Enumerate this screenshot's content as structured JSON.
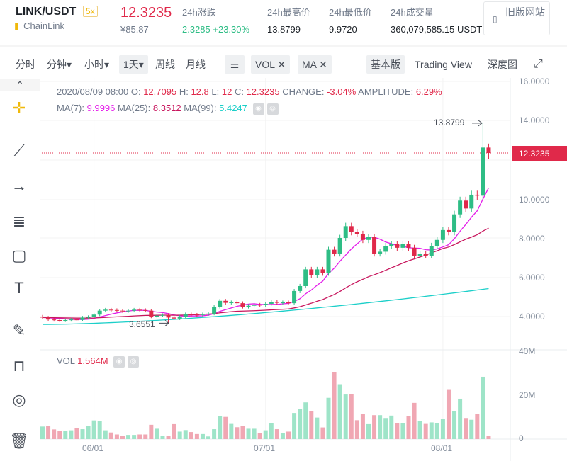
{
  "header": {
    "symbol": "LINK/USDT",
    "leverage": "5x",
    "coin_name": "ChainLink",
    "last_price": "12.3235",
    "last_price_cny": "¥85.87",
    "stats": [
      {
        "label": "24h涨跌",
        "value": "2.3285 +23.30%"
      },
      {
        "label": "24h最高价",
        "value": "13.8799"
      },
      {
        "label": "24h最低价",
        "value": "9.9720"
      },
      {
        "label": "24h成交量",
        "value": "360,079,585.15 USDT"
      }
    ],
    "old_site": "旧版网站"
  },
  "toolbar": {
    "intervals": [
      "分时",
      "分钟▾",
      "小时▾",
      "1天▾",
      "周线",
      "月线"
    ],
    "active_interval": "1天▾",
    "indicators": [
      "VOL ✕",
      "MA ✕"
    ],
    "views": [
      "基本版",
      "Trading View",
      "深度图"
    ],
    "active_view": "基本版"
  },
  "info": {
    "date": "2020/08/09 08:00",
    "o_label": "O:",
    "o": "12.7095",
    "h_label": "H:",
    "h": "12.8",
    "l_label": "L:",
    "l": "12",
    "c_label": "C:",
    "c": "12.3235",
    "change_label": "CHANGE:",
    "change": "-3.04%",
    "amp_label": "AMPLITUDE:",
    "amp": "6.29%",
    "ma7_label": "MA(7):",
    "ma7": "9.9996",
    "ma25_label": "MA(25):",
    "ma25": "8.3512",
    "ma99_label": "MA(99):",
    "ma99": "5.4247",
    "vol_label": "VOL",
    "vol": "1.564M"
  },
  "colors": {
    "up": "#2ebd85",
    "down": "#e0294a",
    "ma7": "#e41dea",
    "ma25": "#c8175e",
    "ma99": "#1ccfc9",
    "vol_up": "#9ee4c8",
    "vol_down": "#f0a7b3"
  },
  "chart_data": {
    "type": "candlestick",
    "x_ticks": [
      "06/01",
      "07/01",
      "08/01"
    ],
    "x_tick_index": [
      9,
      39,
      70
    ],
    "y_ticks": [
      "16.0000",
      "14.0000",
      "12.3235",
      "10.0000",
      "8.0000",
      "6.0000",
      "4.0000"
    ],
    "ylim": [
      3.2,
      16.2
    ],
    "vol_ticks": [
      "40M",
      "20M",
      "0"
    ],
    "vol_lim": [
      0,
      40
    ],
    "max_label": "13.8799",
    "min_label": "3.6551",
    "max_index": 77,
    "min_index": 22,
    "max_value": 13.8799,
    "min_value": 3.6551,
    "close": [
      3.95,
      3.85,
      3.82,
      3.8,
      3.82,
      3.85,
      3.83,
      3.95,
      3.98,
      4.1,
      4.3,
      4.35,
      4.33,
      4.3,
      4.28,
      4.3,
      4.35,
      4.33,
      4.3,
      4.0,
      4.05,
      4.08,
      3.95,
      3.9,
      4.0,
      4.12,
      4.1,
      4.08,
      4.12,
      4.15,
      4.5,
      4.8,
      4.7,
      4.72,
      4.68,
      4.5,
      4.55,
      4.6,
      4.58,
      4.65,
      4.75,
      4.7,
      4.72,
      4.68,
      5.3,
      5.55,
      6.4,
      6.1,
      6.4,
      6.2,
      7.4,
      7.2,
      8.0,
      8.6,
      8.3,
      8.2,
      7.9,
      8.05,
      7.2,
      7.3,
      7.6,
      7.7,
      7.5,
      7.7,
      7.5,
      7.1,
      7.2,
      7.1,
      7.6,
      7.9,
      8.4,
      8.3,
      9.2,
      9.9,
      9.5,
      10.2,
      10.15,
      12.6,
      12.3235
    ],
    "volume_m": [
      5.7,
      6.1,
      4.4,
      3.6,
      3.6,
      4.0,
      5.0,
      4.5,
      6.1,
      8.5,
      8.1,
      4.0,
      3.0,
      2.1,
      1.3,
      1.9,
      1.9,
      2.1,
      2.1,
      6.5,
      4.7,
      1.5,
      1.5,
      6.8,
      3.4,
      4.1,
      3.2,
      2.3,
      2.3,
      1.2,
      4.5,
      10.6,
      10.1,
      6.9,
      5.4,
      6.0,
      4.7,
      4.7,
      2.8,
      4.0,
      7.4,
      4.5,
      2.8,
      3.4,
      11.9,
      13.6,
      16.7,
      12.9,
      9.8,
      5.3,
      18.8,
      30.5,
      25.0,
      20.3,
      20.5,
      8.6,
      11.3,
      6.8,
      10.9,
      10.9,
      9.6,
      10.7,
      7.2,
      7.3,
      10.4,
      16.5,
      8.3,
      6.9,
      7.6,
      7.3,
      9.1,
      22.4,
      12.8,
      18.4,
      9.6,
      8.8,
      11.6,
      28.4,
      1.5
    ],
    "ma99_start": 3.6,
    "ma99_end": 5.4247
  }
}
